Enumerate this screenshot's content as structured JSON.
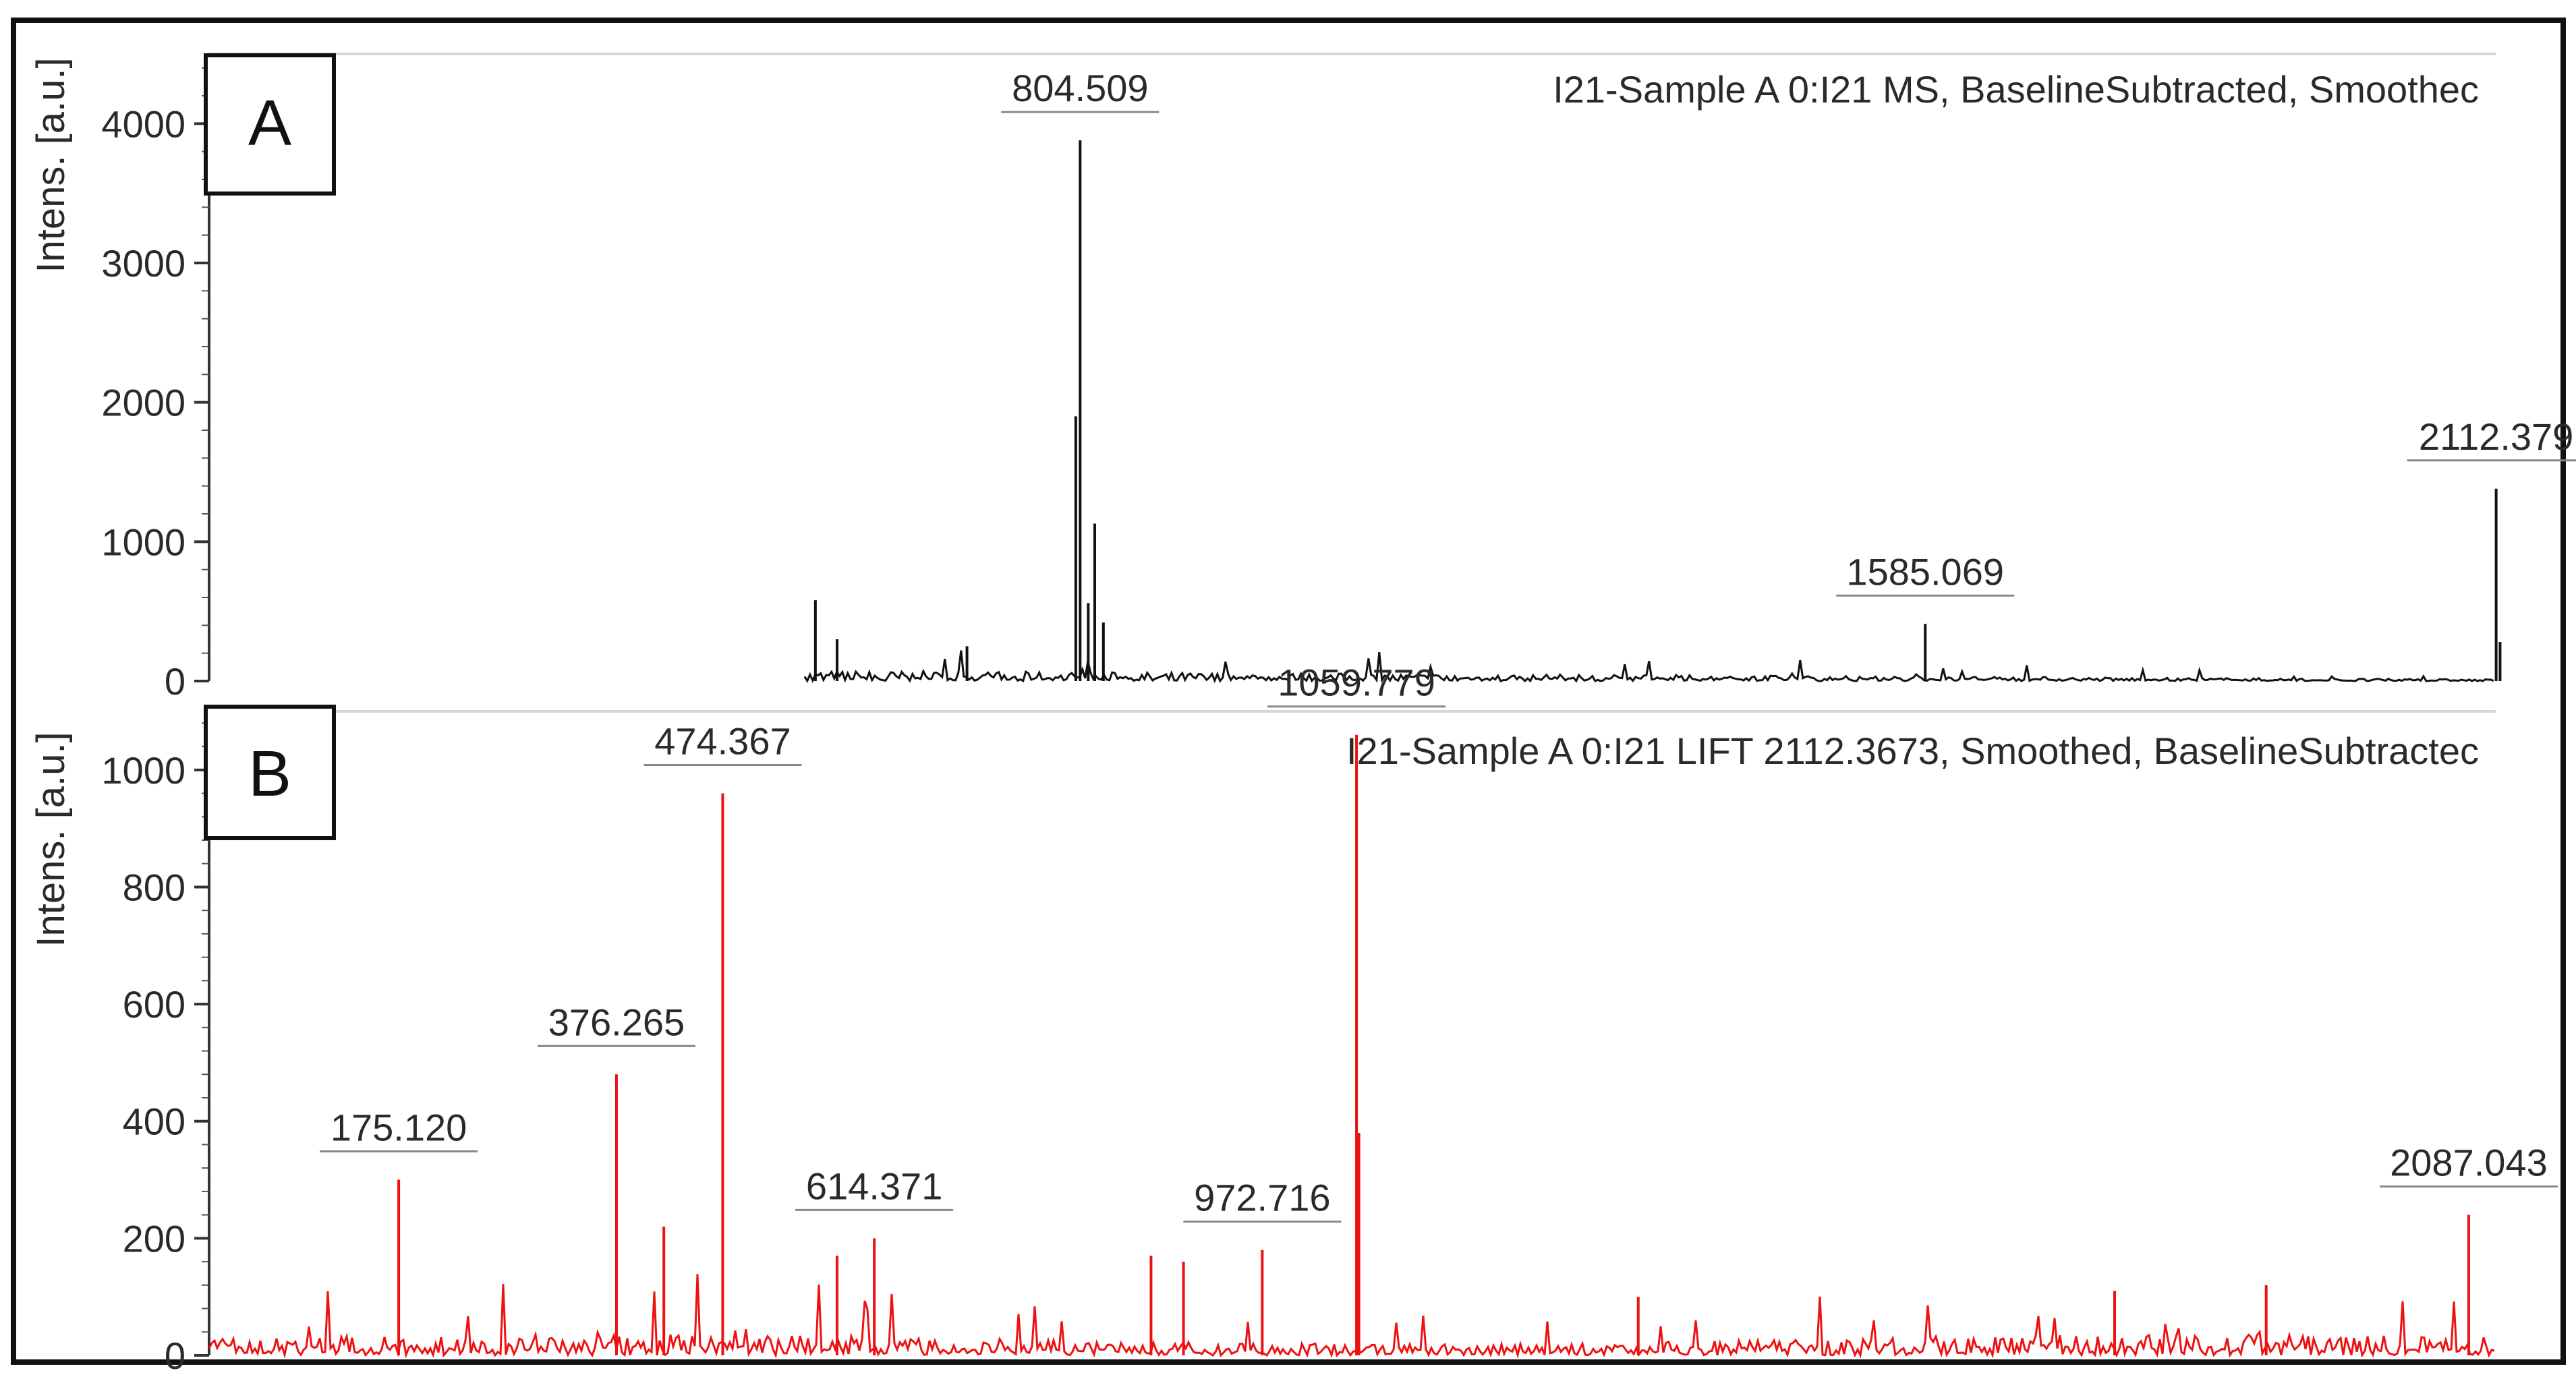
{
  "colors": {
    "frame": "#111111",
    "axis": "#333333",
    "grid": "#d6d6d6",
    "text": "#2a2a2a",
    "series_a": "#111111",
    "series_b": "#ee1111",
    "panel_box_bg": "#ffffff"
  },
  "chart_data": [
    {
      "type": "line",
      "panel_label": "A",
      "title": "I21-Sample A 0:I21 MS, BaselineSubtracted, Smoothec",
      "ylabel": "Intens. [a.u.]",
      "xlim": [
        0,
        2112
      ],
      "ylim": [
        0,
        4500
      ],
      "yticks": [
        0,
        1000,
        2000,
        3000,
        4000
      ],
      "ytick_labels": [
        "0",
        "1000",
        "2000",
        "3000",
        "4000"
      ],
      "grid": "top border line only",
      "series": [
        {
          "color": "#111111",
          "noise_range_mz": [
            550,
            2112
          ],
          "noise_level": 60,
          "peaks": [
            {
              "x": 804.509,
              "y": 3880,
              "label": "804.509"
            },
            {
              "x": 800.5,
              "y": 1900
            },
            {
              "x": 818.0,
              "y": 1130
            },
            {
              "x": 812.0,
              "y": 560
            },
            {
              "x": 826.0,
              "y": 420
            },
            {
              "x": 560.0,
              "y": 580
            },
            {
              "x": 580.0,
              "y": 300
            },
            {
              "x": 700.0,
              "y": 250
            },
            {
              "x": 1585.069,
              "y": 410,
              "label": "1585.069"
            },
            {
              "x": 2112.379,
              "y": 1380,
              "label": "2112.379"
            },
            {
              "x": 2116.0,
              "y": 280
            }
          ]
        }
      ]
    },
    {
      "type": "line",
      "panel_label": "B",
      "title": "I21-Sample A 0:I21 LIFT 2112.3673, Smoothed, BaselineSubtractec",
      "ylabel": "Intens. [a.u.]",
      "xlim": [
        0,
        2112
      ],
      "ylim": [
        0,
        1100
      ],
      "yticks": [
        0,
        200,
        400,
        600,
        800,
        1000
      ],
      "ytick_labels": [
        "0",
        "200",
        "400",
        "600",
        "800",
        "1000"
      ],
      "grid": "top border line only",
      "series": [
        {
          "color": "#ee1111",
          "noise_range_mz": [
            0,
            2112
          ],
          "noise_level": 40,
          "peaks": [
            {
              "x": 175.12,
              "y": 300,
              "label": "175.120"
            },
            {
              "x": 376.265,
              "y": 480,
              "label": "376.265"
            },
            {
              "x": 420.0,
              "y": 220
            },
            {
              "x": 474.367,
              "y": 960,
              "label": "474.367"
            },
            {
              "x": 614.371,
              "y": 200,
              "label": "614.371"
            },
            {
              "x": 580.0,
              "y": 170
            },
            {
              "x": 870.0,
              "y": 170
            },
            {
              "x": 900.0,
              "y": 160
            },
            {
              "x": 972.716,
              "y": 180,
              "label": "972.716"
            },
            {
              "x": 1059.779,
              "y": 1060,
              "label": "1059.779"
            },
            {
              "x": 1062.0,
              "y": 380
            },
            {
              "x": 1320.0,
              "y": 100
            },
            {
              "x": 1760.0,
              "y": 110
            },
            {
              "x": 1900.0,
              "y": 120
            },
            {
              "x": 2087.043,
              "y": 240,
              "label": "2087.043"
            }
          ]
        }
      ]
    }
  ]
}
